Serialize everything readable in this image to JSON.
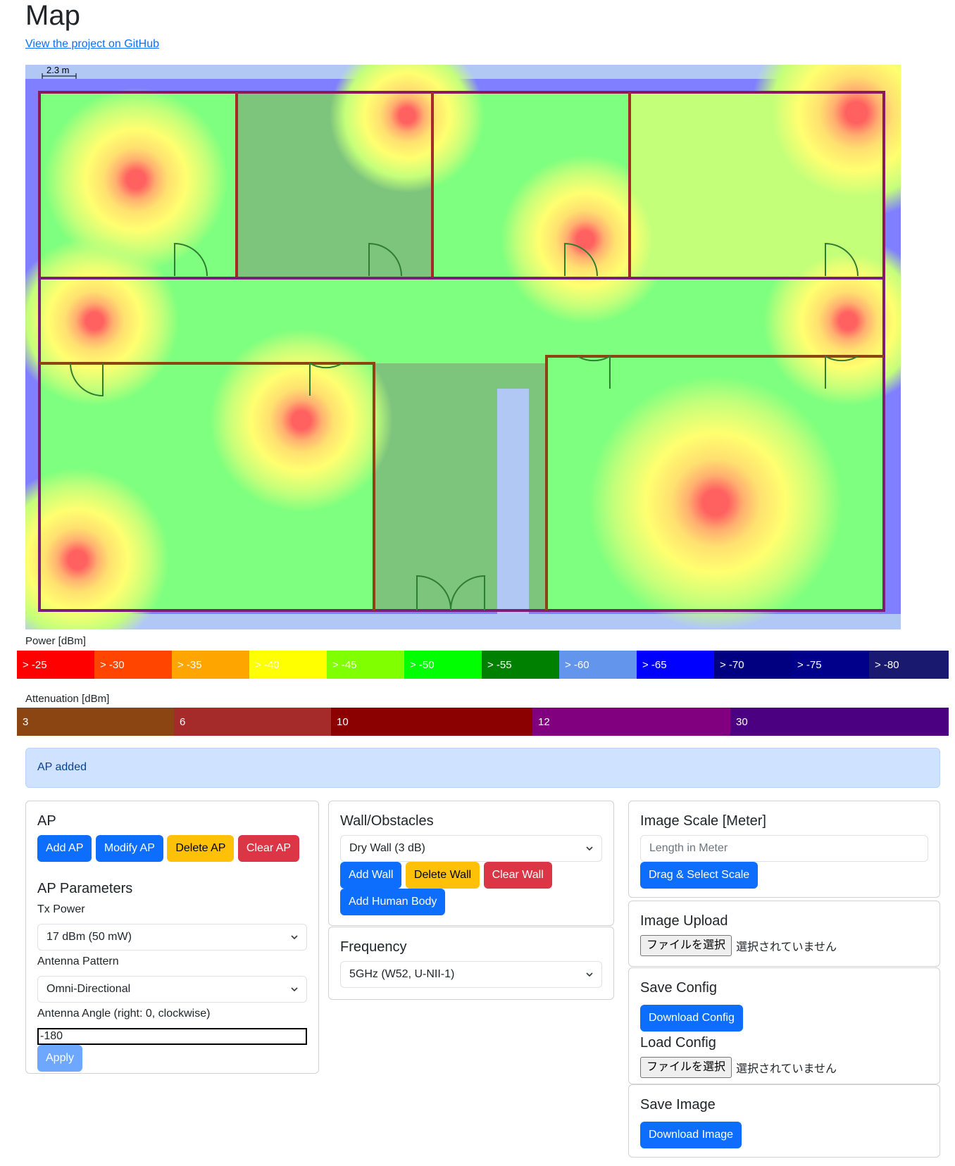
{
  "page": {
    "title": "Map",
    "github_link": "View the project on GitHub"
  },
  "map": {
    "scale_label": "2.3 m"
  },
  "power_legend": {
    "label": "Power [dBm]",
    "items": [
      {
        "text": "> -25",
        "color": "#ff0000"
      },
      {
        "text": "> -30",
        "color": "#ff4500"
      },
      {
        "text": "> -35",
        "color": "#ffa500"
      },
      {
        "text": "> -40",
        "color": "#ffff00"
      },
      {
        "text": "> -45",
        "color": "#7fff00"
      },
      {
        "text": "> -50",
        "color": "#00ff00"
      },
      {
        "text": "> -55",
        "color": "#008000"
      },
      {
        "text": "> -60",
        "color": "#6495ed"
      },
      {
        "text": "> -65",
        "color": "#0000ff"
      },
      {
        "text": "> -70",
        "color": "#000080"
      },
      {
        "text": "> -75",
        "color": "#00008b"
      },
      {
        "text": "> -80",
        "color": "#191970"
      }
    ]
  },
  "attenuation_legend": {
    "label": "Attenuation [dBm]",
    "items": [
      {
        "text": "3",
        "color": "#8b4513"
      },
      {
        "text": "6",
        "color": "#a52a2a"
      },
      {
        "text": "10",
        "color": "#8b0000"
      },
      {
        "text": "12",
        "color": "#800080"
      },
      {
        "text": "30",
        "color": "#4b0082"
      }
    ]
  },
  "alert": {
    "message": "AP added"
  },
  "ap_card": {
    "title": "AP",
    "buttons": {
      "add": "Add AP",
      "modify": "Modify AP",
      "delete": "Delete AP",
      "clear": "Clear AP"
    },
    "params_title": "AP Parameters",
    "tx_power_label": "Tx Power",
    "tx_power_value": "17 dBm (50 mW)",
    "antenna_pattern_label": "Antenna Pattern",
    "antenna_pattern_value": "Omni-Directional",
    "antenna_angle_label": "Antenna Angle (right: 0, clockwise)",
    "antenna_angle_value": "-180",
    "apply": "Apply"
  },
  "wall_card": {
    "title": "Wall/Obstacles",
    "wall_type_value": "Dry Wall (3 dB)",
    "buttons": {
      "add": "Add Wall",
      "delete": "Delete Wall",
      "clear": "Clear Wall",
      "add_human": "Add Human Body"
    }
  },
  "frequency_card": {
    "title": "Frequency",
    "value": "5GHz (W52, U-NII-1)"
  },
  "scale_card": {
    "title": "Image Scale [Meter]",
    "placeholder": "Length in Meter",
    "button": "Drag & Select Scale"
  },
  "upload_card": {
    "title": "Image Upload",
    "file_button": "ファイルを選択",
    "file_status": "選択されていません"
  },
  "config_card": {
    "save_title": "Save Config",
    "download_button": "Download Config",
    "load_title": "Load Config",
    "file_button": "ファイルを選択",
    "file_status": "選択されていません"
  },
  "save_image_card": {
    "title": "Save Image",
    "button": "Download Image"
  }
}
